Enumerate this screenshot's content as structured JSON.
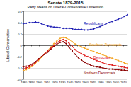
{
  "chart_data": {
    "type": "line",
    "title": "Senate 1879-2015",
    "subtitle": "Party Means on Liberal-Conservative Dimension",
    "y_label": "Liberal-Conservative",
    "x": [
      1879,
      1883,
      1887,
      1891,
      1895,
      1899,
      1903,
      1907,
      1911,
      1915,
      1919,
      1923,
      1927,
      1931,
      1935,
      1939,
      1943,
      1947,
      1951,
      1955,
      1959,
      1963,
      1967,
      1971,
      1975,
      1979,
      1983,
      1987,
      1991,
      1995,
      1999,
      2003,
      2007,
      2011,
      2015
    ],
    "series": [
      {
        "name": "Republicans",
        "color": "#1f1fb4",
        "marker": "circle",
        "values": [
          0.38,
          0.39,
          0.4,
          0.4,
          0.41,
          0.4,
          0.38,
          0.36,
          0.34,
          0.33,
          0.32,
          0.32,
          0.31,
          0.3,
          0.3,
          0.3,
          0.29,
          0.28,
          0.28,
          0.28,
          0.27,
          0.27,
          0.28,
          0.29,
          0.31,
          0.33,
          0.35,
          0.38,
          0.4,
          0.42,
          0.44,
          0.46,
          0.48,
          0.51,
          0.54
        ]
      },
      {
        "name": "Southern Democrats",
        "color": "#f5a623",
        "marker": "circle",
        "values": [
          -0.45,
          -0.43,
          -0.4,
          -0.37,
          -0.32,
          -0.27,
          -0.21,
          -0.15,
          -0.09,
          -0.03,
          0.03,
          0.08,
          0.12,
          0.14,
          0.13,
          0.1,
          0.06,
          0.02,
          0.0,
          -0.03,
          -0.05,
          -0.07,
          -0.09,
          -0.11,
          -0.13,
          -0.15,
          -0.17,
          -0.19,
          -0.21,
          -0.23,
          -0.25,
          -0.27,
          -0.29,
          -0.31,
          -0.33
        ]
      },
      {
        "name": "Democrats",
        "color": "#e02020",
        "marker": "circle",
        "values": [
          -0.42,
          -0.4,
          -0.38,
          -0.35,
          -0.3,
          -0.25,
          -0.2,
          -0.15,
          -0.1,
          -0.05,
          0.0,
          0.05,
          0.08,
          0.1,
          0.08,
          0.03,
          -0.02,
          -0.08,
          -0.12,
          -0.15,
          -0.18,
          -0.2,
          -0.22,
          -0.25,
          -0.27,
          -0.29,
          -0.31,
          -0.33,
          -0.34,
          -0.35,
          -0.36,
          -0.37,
          -0.38,
          -0.39,
          -0.4
        ]
      },
      {
        "name": "Northern Democrats",
        "color": "#8b0000",
        "marker": "circle",
        "values": [
          -0.38,
          -0.37,
          -0.36,
          -0.33,
          -0.29,
          -0.24,
          -0.2,
          -0.16,
          -0.12,
          -0.07,
          -0.02,
          0.02,
          0.05,
          0.06,
          0.03,
          -0.04,
          -0.1,
          -0.16,
          -0.22,
          -0.26,
          -0.3,
          -0.33,
          -0.35,
          -0.37,
          -0.38,
          -0.39,
          -0.4,
          -0.41,
          -0.42,
          -0.42,
          -0.43,
          -0.43,
          -0.44,
          -0.44,
          -0.45
        ]
      }
    ],
    "xlim": [
      1879,
      2015
    ],
    "xticks": [
      1880,
      1890,
      1900,
      1910,
      1920,
      1930,
      1940,
      1950,
      1960,
      1970,
      1980,
      1990,
      2000,
      2010
    ],
    "ylim": [
      -0.6,
      0.6
    ],
    "yticks": [
      -0.6,
      -0.4,
      -0.2,
      0,
      0.2,
      0.4,
      0.6
    ],
    "grid": true
  }
}
